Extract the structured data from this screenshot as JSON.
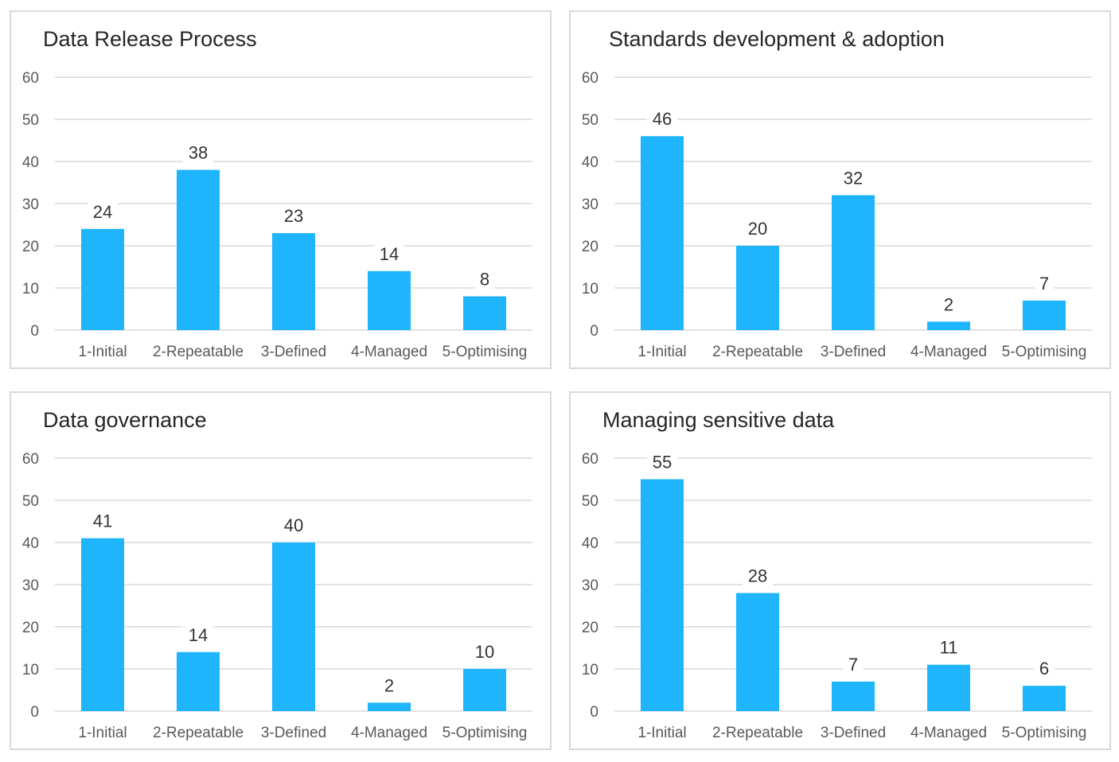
{
  "chart_data": [
    {
      "type": "bar",
      "title": "Data Release Process",
      "categories": [
        "1-Initial",
        "2-Repeatable",
        "3-Defined",
        "4-Managed",
        "5-Optimising"
      ],
      "values": [
        24,
        38,
        23,
        14,
        8
      ],
      "ylim": [
        0,
        60
      ],
      "yticks": [
        0,
        10,
        20,
        30,
        40,
        50,
        60
      ],
      "grid": true,
      "bar_color": "#1eb5fc",
      "data_labels": true
    },
    {
      "type": "bar",
      "title": "Standards development & adoption",
      "categories": [
        "1-Initial",
        "2-Repeatable",
        "3-Defined",
        "4-Managed",
        "5-Optimising"
      ],
      "values": [
        46,
        20,
        32,
        2,
        7
      ],
      "ylim": [
        0,
        60
      ],
      "yticks": [
        0,
        10,
        20,
        30,
        40,
        50,
        60
      ],
      "grid": true,
      "bar_color": "#1eb5fc",
      "data_labels": true
    },
    {
      "type": "bar",
      "title": "Data governance",
      "categories": [
        "1-Initial",
        "2-Repeatable",
        "3-Defined",
        "4-Managed",
        "5-Optimising"
      ],
      "values": [
        41,
        14,
        40,
        2,
        10
      ],
      "ylim": [
        0,
        60
      ],
      "yticks": [
        0,
        10,
        20,
        30,
        40,
        50,
        60
      ],
      "grid": true,
      "bar_color": "#1eb5fc",
      "data_labels": true
    },
    {
      "type": "bar",
      "title": "Managing sensitive data",
      "categories": [
        "1-Initial",
        "2-Repeatable",
        "3-Defined",
        "4-Managed",
        "5-Optimising"
      ],
      "values": [
        55,
        28,
        7,
        11,
        6
      ],
      "ylim": [
        0,
        60
      ],
      "yticks": [
        0,
        10,
        20,
        30,
        40,
        50,
        60
      ],
      "grid": true,
      "bar_color": "#1eb5fc",
      "data_labels": true
    }
  ]
}
